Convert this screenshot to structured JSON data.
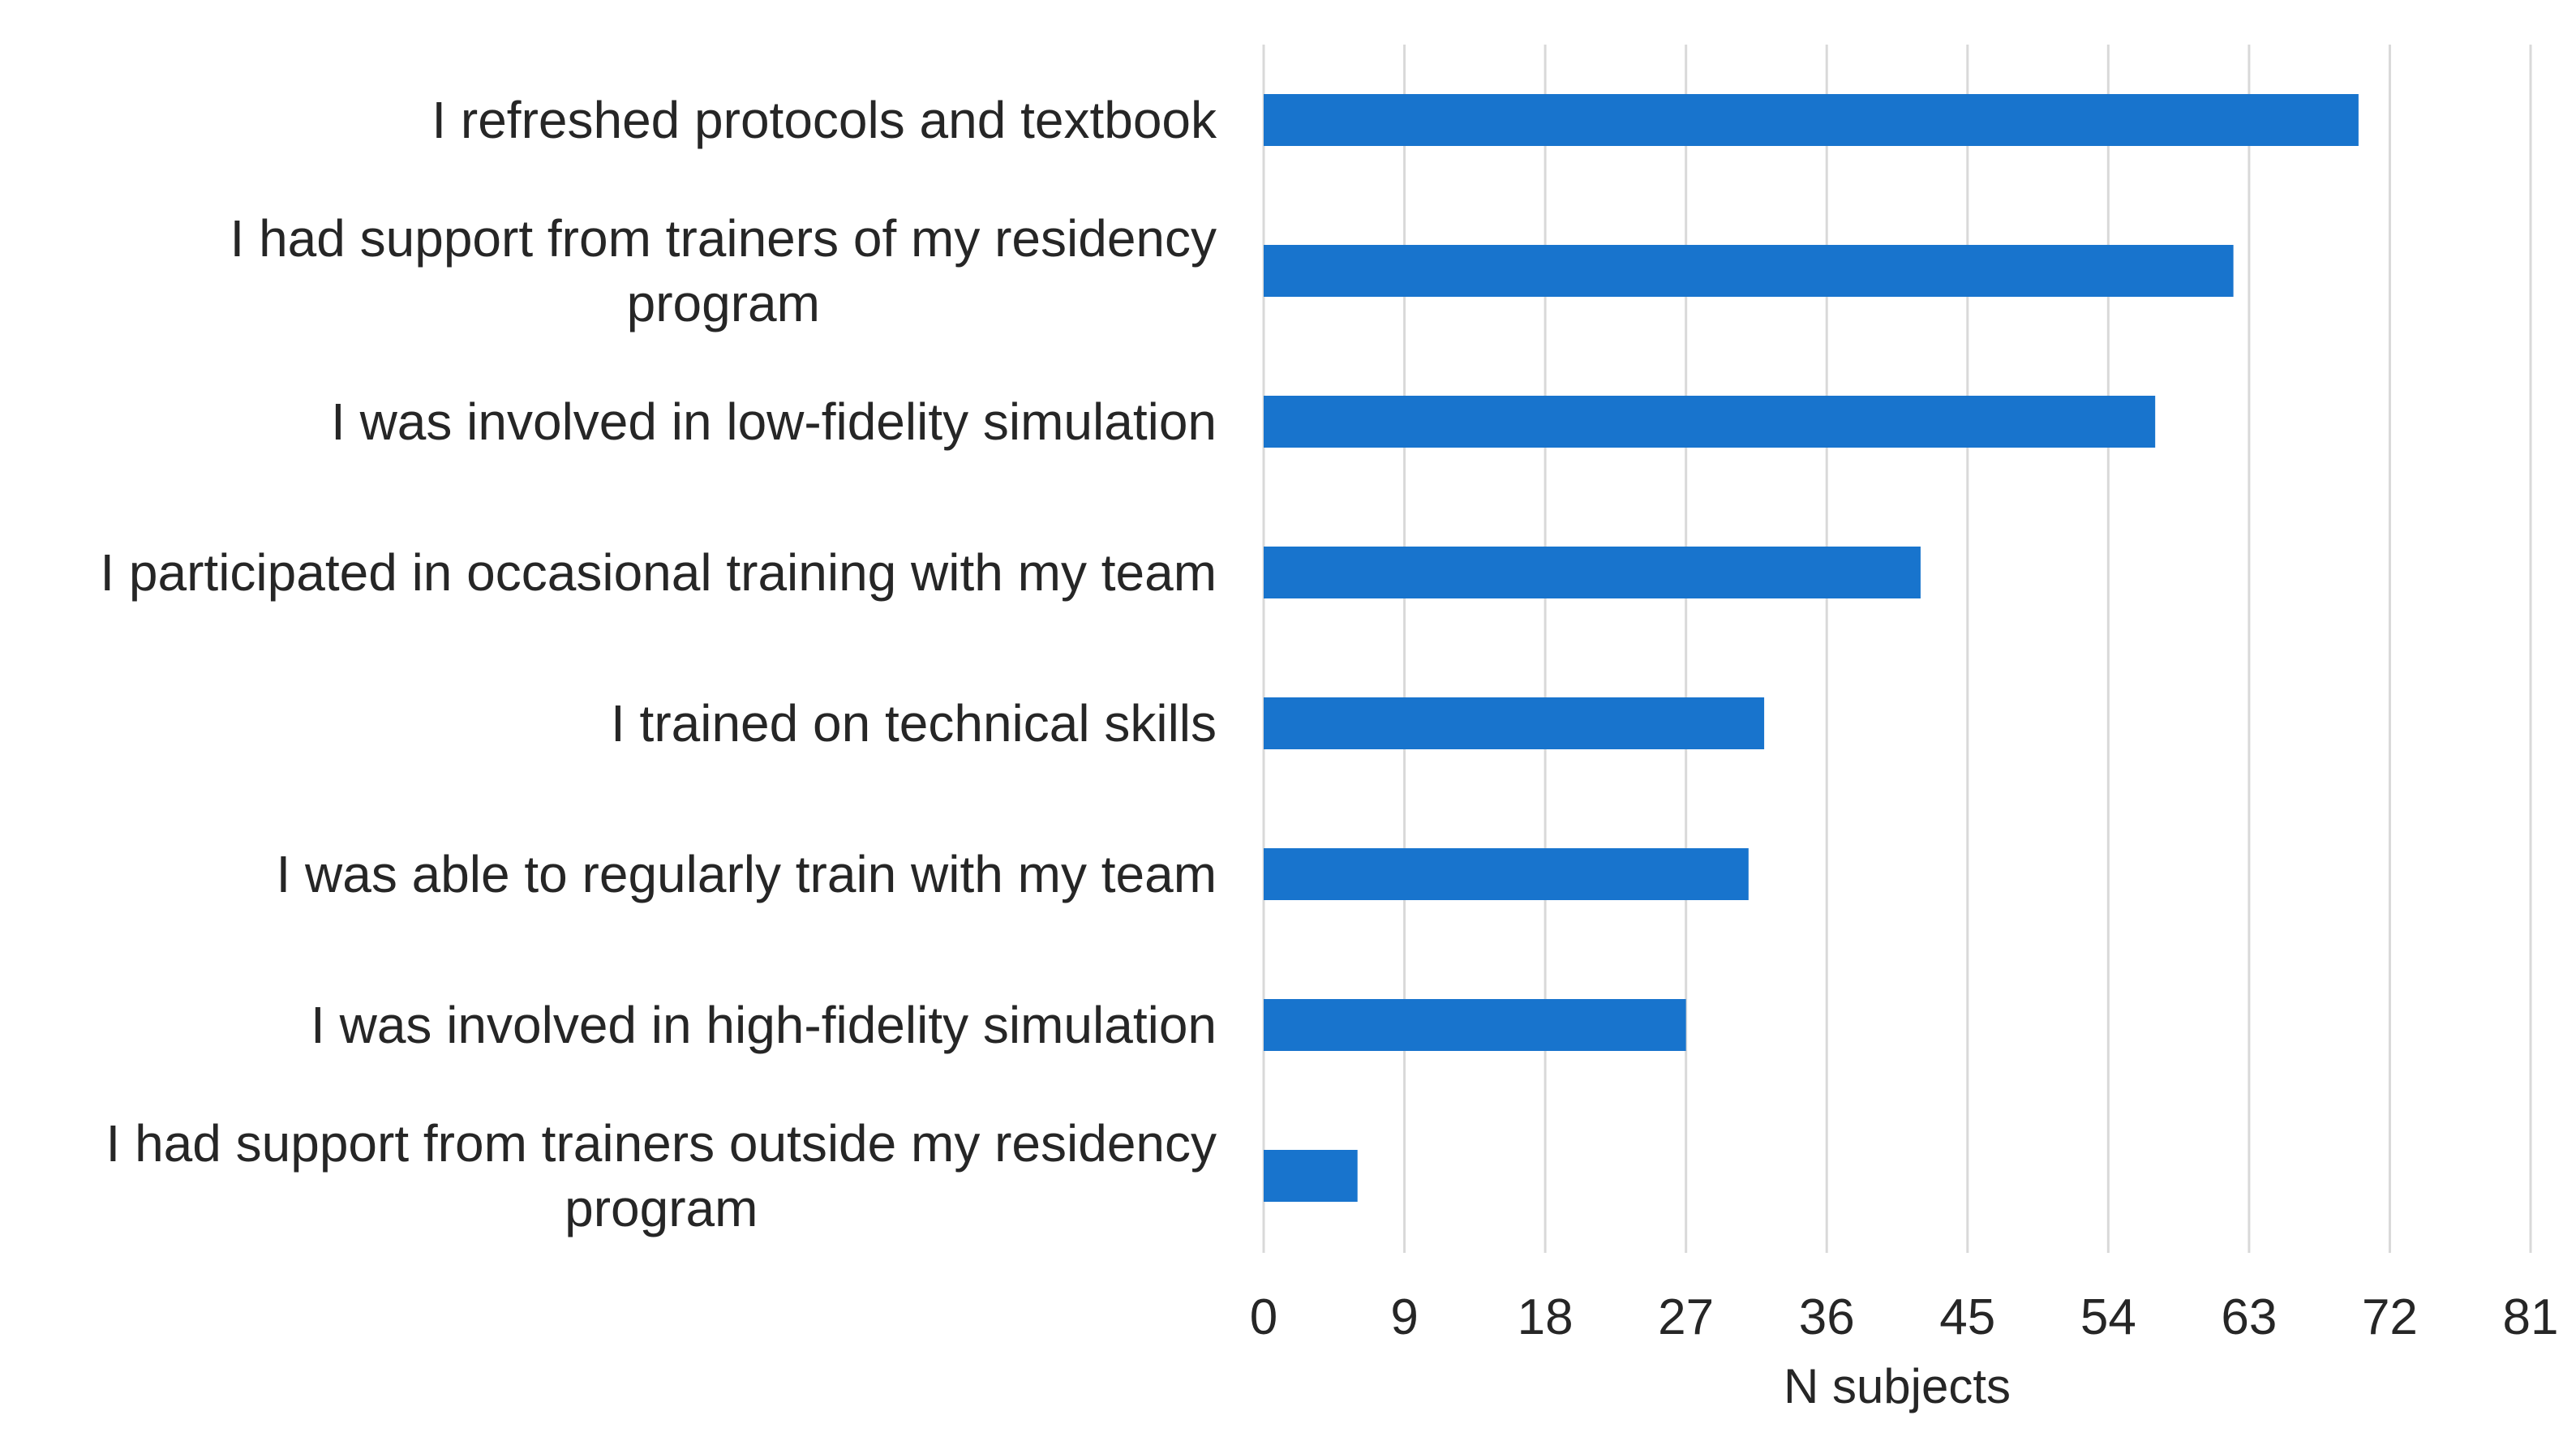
{
  "chart_data": {
    "type": "bar",
    "orientation": "horizontal",
    "categories": [
      [
        "I refreshed protocols and textbook"
      ],
      [
        "I had support from trainers of my residency",
        "program"
      ],
      [
        "I was involved in low-fidelity simulation"
      ],
      [
        "I participated in occasional training with my team"
      ],
      [
        "I trained on technical skills"
      ],
      [
        "I was able to regularly train with my team"
      ],
      [
        "I was involved in high-fidelity simulation"
      ],
      [
        "I had support from trainers outside my residency",
        "program"
      ]
    ],
    "values": [
      70,
      62,
      57,
      42,
      32,
      31,
      27,
      6
    ],
    "xlabel": "N subjects",
    "xlim": [
      0,
      81
    ],
    "xticks": [
      0,
      9,
      18,
      27,
      36,
      45,
      54,
      63,
      72,
      81
    ],
    "bar_color": "#1874cd",
    "grid": "vertical",
    "legend": "none"
  }
}
